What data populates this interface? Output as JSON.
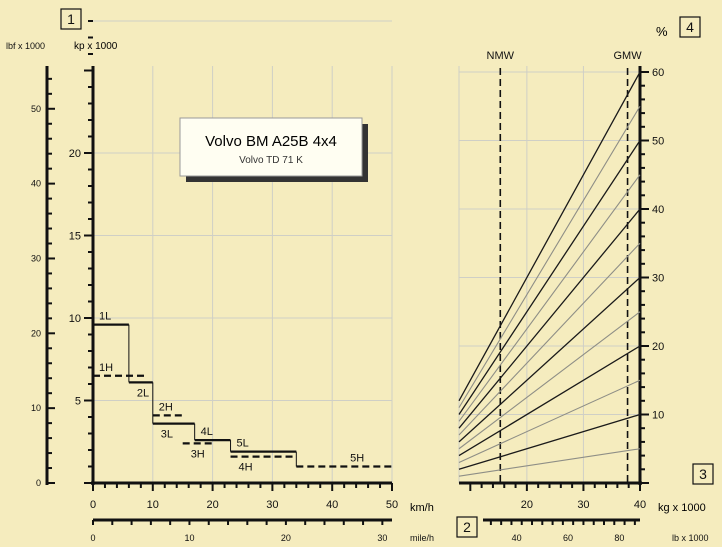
{
  "chart_data": [
    {
      "type": "line",
      "title": "Volvo BM A25B 4x4",
      "subtitle": "Volvo TD 71 K",
      "panel_label": "1",
      "y_unit_lbf": "lbf x 1000",
      "y_unit_kp": "kp x 1000",
      "x_unit_kmh": "km/h",
      "x_unit_mph": "mile/h",
      "x_box_label": "2",
      "xlim_kmh": [
        0,
        50
      ],
      "xticks_kmh": [
        "0",
        "10",
        "20",
        "30",
        "40",
        "50"
      ],
      "xlim_mph": [
        0,
        31
      ],
      "xticks_mph": [
        "0",
        "10",
        "20",
        "30"
      ],
      "ylim_kp": [
        0,
        28
      ],
      "yticks_kp": [
        "0",
        "5",
        "10",
        "15",
        "20"
      ],
      "yticks_lbf": [
        "0",
        "10",
        "20",
        "30",
        "40",
        "50"
      ],
      "grid": true,
      "series": [
        {
          "name": "1L",
          "style": "solid",
          "x": [
            0,
            6
          ],
          "y": [
            9.6,
            9.6
          ]
        },
        {
          "name": "1H",
          "style": "dashed",
          "x": [
            0,
            9
          ],
          "y": [
            6.5,
            6.5
          ]
        },
        {
          "name": "2L",
          "style": "solid",
          "x": [
            6,
            10
          ],
          "y": [
            6.1,
            6.1
          ]
        },
        {
          "name": "2H",
          "style": "dashed",
          "x": [
            10,
            15
          ],
          "y": [
            4.1,
            4.1
          ]
        },
        {
          "name": "3L",
          "style": "solid",
          "x": [
            10,
            17
          ],
          "y": [
            3.6,
            3.6
          ]
        },
        {
          "name": "3H",
          "style": "dashed",
          "x": [
            15,
            20
          ],
          "y": [
            2.4,
            2.4
          ]
        },
        {
          "name": "4L",
          "style": "solid",
          "x": [
            17,
            23
          ],
          "y": [
            2.6,
            2.6
          ]
        },
        {
          "name": "4H",
          "style": "dashed",
          "x": [
            23,
            34
          ],
          "y": [
            1.6,
            1.6
          ]
        },
        {
          "name": "5L",
          "style": "solid",
          "x": [
            23,
            34
          ],
          "y": [
            1.9,
            1.9
          ]
        },
        {
          "name": "5H",
          "style": "dashed",
          "x": [
            34,
            50
          ],
          "y": [
            1.0,
            1.0
          ]
        }
      ],
      "step_connectors": [
        {
          "x": 6,
          "y_from": 9.6,
          "y_to": 6.1
        },
        {
          "x": 10,
          "y_from": 6.1,
          "y_to": 3.6
        },
        {
          "x": 17,
          "y_from": 3.6,
          "y_to": 2.6
        },
        {
          "x": 23,
          "y_from": 2.6,
          "y_to": 1.9
        },
        {
          "x": 34,
          "y_from": 1.9,
          "y_to": 1.0
        }
      ]
    },
    {
      "type": "line",
      "panel_label": "4",
      "right_box_label": "3",
      "y_unit": "%",
      "x_unit_kg": "kg x 1000",
      "x_unit_lb": "lb x 1000",
      "xlim_kg": [
        8,
        40
      ],
      "xticks_kg": [
        "20",
        "30",
        "40"
      ],
      "xlim_lb": [
        17.6,
        88
      ],
      "xticks_lb": [
        "40",
        "60",
        "80"
      ],
      "ylim_pct": [
        0,
        60
      ],
      "yticks_pct": [
        "10",
        "20",
        "30",
        "40",
        "50",
        "60"
      ],
      "grid": true,
      "vlines": [
        {
          "label": "NMW",
          "x_kg": 15.3
        },
        {
          "label": "GMW",
          "x_kg": 37.8
        }
      ],
      "grade_lines": {
        "style_note": "alternating dark and light lines",
        "start_kg": 8,
        "end_kg": 40,
        "y_end": [
          5,
          10,
          15,
          20,
          25,
          30,
          35,
          40,
          45,
          50,
          55,
          60
        ],
        "y_start": [
          1.0,
          2.0,
          3.0,
          4.0,
          5.0,
          6.0,
          7.0,
          8.0,
          9.0,
          10.0,
          11.0,
          12.0
        ]
      }
    }
  ]
}
